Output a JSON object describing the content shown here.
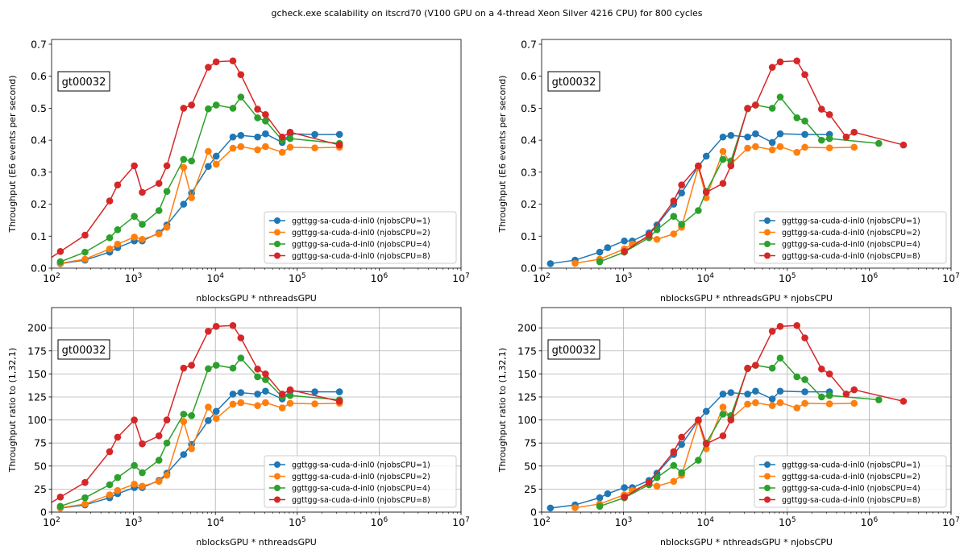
{
  "figure_title": "gcheck.exe scalability on itscrd70 (V100 GPU on a 4-thread Xeon Silver 4216 CPU) for 800 cycles",
  "colors": {
    "njobsCPU=1": "#1f77b4",
    "njobsCPU=2": "#ff7f0e",
    "njobsCPU=4": "#2ca02c",
    "njobsCPU=8": "#d62728"
  },
  "chart_data": [
    {
      "type": "line",
      "panel": "top-left",
      "annotation": "gt00032",
      "xlabel": "nblocksGPU * nthreadsGPU",
      "ylabel": "Throughput (E6 events per second)",
      "xscale": "log",
      "xlim": [
        100,
        10000000
      ],
      "ylim": [
        0,
        0.715
      ],
      "yticks": [
        0,
        0.1,
        0.2,
        0.3,
        0.4,
        0.5,
        0.6,
        0.7
      ],
      "yticklabels": [
        "0.0",
        "0.1",
        "0.2",
        "0.3",
        "0.4",
        "0.5",
        "0.6",
        "0.7"
      ],
      "xticks": [
        100,
        1000,
        10000,
        100000,
        1000000,
        10000000
      ],
      "xticklabels": [
        "10^2",
        "10^3",
        "10^4",
        "10^5",
        "10^6",
        "10^7"
      ],
      "grid": false,
      "legend_position": "lower-right",
      "series": [
        {
          "name": "ggttgg-sa-cuda-d-inl0 (njobsCPU=1)",
          "color_key": "njobsCPU=1",
          "x": [
            128,
            256,
            512,
            640,
            1024,
            1280,
            2048,
            2560,
            4096,
            5120,
            8192,
            10240,
            16384,
            20480,
            32768,
            40960,
            65536,
            81920,
            163840,
            327680
          ],
          "y": [
            0.014,
            0.025,
            0.05,
            0.064,
            0.085,
            0.085,
            0.11,
            0.135,
            0.2,
            0.235,
            0.318,
            0.35,
            0.41,
            0.415,
            0.41,
            0.42,
            0.393,
            0.42,
            0.418,
            0.418
          ]
        },
        {
          "name": "ggttgg-sa-cuda-d-inl0 (njobsCPU=2)",
          "color_key": "njobsCPU=2",
          "x": [
            128,
            256,
            512,
            640,
            1024,
            1280,
            2048,
            2560,
            4096,
            5120,
            8192,
            10240,
            16384,
            20480,
            32768,
            40960,
            65536,
            81920,
            163840,
            327680
          ],
          "y": [
            0.015,
            0.028,
            0.06,
            0.075,
            0.097,
            0.09,
            0.107,
            0.128,
            0.315,
            0.22,
            0.365,
            0.325,
            0.375,
            0.38,
            0.37,
            0.38,
            0.362,
            0.378,
            0.376,
            0.378
          ]
        },
        {
          "name": "ggttgg-sa-cuda-d-inl0 (njobsCPU=4)",
          "color_key": "njobsCPU=4",
          "x": [
            128,
            256,
            512,
            640,
            1024,
            1280,
            2048,
            2560,
            4096,
            5120,
            8192,
            10240,
            16384,
            20480,
            32768,
            40960,
            65536,
            81920,
            327680
          ],
          "y": [
            0.02,
            0.05,
            0.095,
            0.12,
            0.162,
            0.137,
            0.18,
            0.24,
            0.34,
            0.335,
            0.498,
            0.51,
            0.5,
            0.535,
            0.47,
            0.46,
            0.4,
            0.405,
            0.39
          ]
        },
        {
          "name": "ggttgg-sa-cuda-d-inl0 (njobsCPU=8)",
          "color_key": "njobsCPU=8",
          "x": [
            128,
            256,
            512,
            640,
            1024,
            1280,
            2048,
            2560,
            4096,
            5120,
            8192,
            10240,
            16384,
            20480,
            32768,
            40960,
            65536,
            81920,
            327680
          ],
          "y": [
            0.052,
            0.103,
            0.21,
            0.26,
            0.32,
            0.237,
            0.265,
            0.32,
            0.5,
            0.51,
            0.628,
            0.645,
            0.648,
            0.605,
            0.497,
            0.48,
            0.41,
            0.425,
            0.385
          ]
        }
      ]
    },
    {
      "type": "line",
      "panel": "top-right",
      "annotation": "gt00032",
      "xlabel": "nblocksGPU * nthreadsGPU * njobsCPU",
      "ylabel": "Throughput (E6 events per second)",
      "xscale": "log",
      "xlim": [
        100,
        10000000
      ],
      "ylim": [
        0,
        0.715
      ],
      "yticks": [
        0,
        0.1,
        0.2,
        0.3,
        0.4,
        0.5,
        0.6,
        0.7
      ],
      "yticklabels": [
        "0.0",
        "0.1",
        "0.2",
        "0.3",
        "0.4",
        "0.5",
        "0.6",
        "0.7"
      ],
      "xticks": [
        100,
        1000,
        10000,
        100000,
        1000000,
        10000000
      ],
      "xticklabels": [
        "10^2",
        "10^3",
        "10^4",
        "10^5",
        "10^6",
        "10^7"
      ],
      "grid": false,
      "legend_position": "lower-right",
      "series": [
        {
          "name": "ggttgg-sa-cuda-d-inl0 (njobsCPU=1)",
          "color_key": "njobsCPU=1",
          "x": [
            128,
            256,
            512,
            640,
            1024,
            1280,
            2048,
            2560,
            4096,
            5120,
            8192,
            10240,
            16384,
            20480,
            32768,
            40960,
            65536,
            81920,
            163840,
            327680
          ],
          "y": [
            0.014,
            0.025,
            0.05,
            0.064,
            0.085,
            0.085,
            0.11,
            0.135,
            0.2,
            0.235,
            0.318,
            0.35,
            0.41,
            0.415,
            0.41,
            0.42,
            0.393,
            0.42,
            0.418,
            0.418
          ]
        },
        {
          "name": "ggttgg-sa-cuda-d-inl0 (njobsCPU=2)",
          "color_key": "njobsCPU=2",
          "x": [
            256,
            512,
            1024,
            1280,
            2048,
            2560,
            4096,
            5120,
            8192,
            10240,
            16384,
            20480,
            32768,
            40960,
            65536,
            81920,
            131072,
            163840,
            327680,
            655360
          ],
          "y": [
            0.015,
            0.028,
            0.06,
            0.075,
            0.097,
            0.09,
            0.107,
            0.128,
            0.315,
            0.22,
            0.365,
            0.325,
            0.375,
            0.38,
            0.37,
            0.38,
            0.362,
            0.378,
            0.376,
            0.378
          ]
        },
        {
          "name": "ggttgg-sa-cuda-d-inl0 (njobsCPU=4)",
          "color_key": "njobsCPU=4",
          "x": [
            512,
            1024,
            2048,
            2560,
            4096,
            5120,
            8192,
            10240,
            16384,
            20480,
            32768,
            40960,
            65536,
            81920,
            131072,
            163840,
            262144,
            327680,
            1310720
          ],
          "y": [
            0.02,
            0.05,
            0.095,
            0.12,
            0.162,
            0.137,
            0.18,
            0.24,
            0.34,
            0.335,
            0.498,
            0.51,
            0.5,
            0.535,
            0.47,
            0.46,
            0.4,
            0.405,
            0.39
          ]
        },
        {
          "name": "ggttgg-sa-cuda-d-inl0 (njobsCPU=8)",
          "color_key": "njobsCPU=8",
          "x": [
            1024,
            2048,
            4096,
            5120,
            8192,
            10240,
            16384,
            20480,
            32768,
            40960,
            65536,
            81920,
            131072,
            163840,
            262144,
            327680,
            524288,
            655360,
            2621440
          ],
          "y": [
            0.052,
            0.103,
            0.21,
            0.26,
            0.32,
            0.237,
            0.265,
            0.32,
            0.5,
            0.51,
            0.628,
            0.645,
            0.648,
            0.605,
            0.497,
            0.48,
            0.41,
            0.425,
            0.385
          ]
        }
      ]
    },
    {
      "type": "line",
      "panel": "bottom-left",
      "annotation": "gt00032",
      "xlabel": "nblocksGPU * nthreadsGPU",
      "ylabel": "Throughput ratio to (1,32,1)",
      "xscale": "log",
      "xlim": [
        100,
        10000000
      ],
      "ylim": [
        0,
        222
      ],
      "yticks": [
        0,
        25,
        50,
        75,
        100,
        125,
        150,
        175,
        200
      ],
      "yticklabels": [
        "0",
        "25",
        "50",
        "75",
        "100",
        "125",
        "150",
        "175",
        "200"
      ],
      "xticks": [
        100,
        1000,
        10000,
        100000,
        1000000,
        10000000
      ],
      "xticklabels": [
        "10^2",
        "10^3",
        "10^4",
        "10^5",
        "10^6",
        "10^7"
      ],
      "grid": true,
      "legend_position": "lower-right",
      "series": [
        {
          "name": "ggttgg-sa-cuda-d-inl0 (njobsCPU=1)",
          "color_key": "njobsCPU=1",
          "x": [
            128,
            256,
            512,
            640,
            1024,
            1280,
            2048,
            2560,
            4096,
            5120,
            8192,
            10240,
            16384,
            20480,
            32768,
            40960,
            65536,
            81920,
            163840,
            327680
          ],
          "y": [
            4.4,
            7.8,
            15.6,
            20,
            26.6,
            26.6,
            34.4,
            42.2,
            62.5,
            73.4,
            99.4,
            109.4,
            128.1,
            129.7,
            128.1,
            131.3,
            122.8,
            131.3,
            130.6,
            130.6
          ]
        },
        {
          "name": "ggttgg-sa-cuda-d-inl0 (njobsCPU=2)",
          "color_key": "njobsCPU=2",
          "x": [
            128,
            256,
            512,
            640,
            1024,
            1280,
            2048,
            2560,
            4096,
            5120,
            8192,
            10240,
            16384,
            20480,
            32768,
            40960,
            65536,
            81920,
            163840,
            327680
          ],
          "y": [
            4.7,
            8.8,
            18.8,
            23.4,
            30.3,
            28.1,
            33.4,
            40,
            98.4,
            68.8,
            114,
            101.6,
            117.2,
            118.8,
            115.6,
            118.8,
            113.1,
            118.1,
            117.5,
            118.1
          ]
        },
        {
          "name": "ggttgg-sa-cuda-d-inl0 (njobsCPU=4)",
          "color_key": "njobsCPU=4",
          "x": [
            128,
            256,
            512,
            640,
            1024,
            1280,
            2048,
            2560,
            4096,
            5120,
            8192,
            10240,
            16384,
            20480,
            32768,
            40960,
            65536,
            81920,
            327680
          ],
          "y": [
            6.3,
            15.6,
            29.7,
            37.5,
            50.6,
            42.8,
            56.3,
            75,
            106.3,
            104.7,
            155.6,
            159.4,
            156.3,
            167.2,
            146.9,
            143.8,
            125,
            126.6,
            121.9
          ]
        },
        {
          "name": "ggttgg-sa-cuda-d-inl0 (njobsCPU=8)",
          "color_key": "njobsCPU=8",
          "x": [
            128,
            256,
            512,
            640,
            1024,
            1280,
            2048,
            2560,
            4096,
            5120,
            8192,
            10240,
            16384,
            20480,
            32768,
            40960,
            65536,
            81920,
            327680
          ],
          "y": [
            16.3,
            32.2,
            65.6,
            81.3,
            100,
            74.1,
            82.8,
            100,
            156.3,
            159.4,
            196.3,
            201.6,
            202.5,
            189.1,
            155.3,
            150,
            128.1,
            132.8,
            120.3
          ]
        }
      ]
    },
    {
      "type": "line",
      "panel": "bottom-right",
      "annotation": "gt00032",
      "xlabel": "nblocksGPU * nthreadsGPU * njobsCPU",
      "ylabel": "Throughput ratio to (1,32,1)",
      "xscale": "log",
      "xlim": [
        100,
        10000000
      ],
      "ylim": [
        0,
        222
      ],
      "yticks": [
        0,
        25,
        50,
        75,
        100,
        125,
        150,
        175,
        200
      ],
      "yticklabels": [
        "0",
        "25",
        "50",
        "75",
        "100",
        "125",
        "150",
        "175",
        "200"
      ],
      "xticks": [
        100,
        1000,
        10000,
        100000,
        1000000,
        10000000
      ],
      "xticklabels": [
        "10^2",
        "10^3",
        "10^4",
        "10^5",
        "10^6",
        "10^7"
      ],
      "grid": true,
      "legend_position": "lower-right",
      "series": [
        {
          "name": "ggttgg-sa-cuda-d-inl0 (njobsCPU=1)",
          "color_key": "njobsCPU=1",
          "x": [
            128,
            256,
            512,
            640,
            1024,
            1280,
            2048,
            2560,
            4096,
            5120,
            8192,
            10240,
            16384,
            20480,
            32768,
            40960,
            65536,
            81920,
            163840,
            327680
          ],
          "y": [
            4.4,
            7.8,
            15.6,
            20,
            26.6,
            26.6,
            34.4,
            42.2,
            62.5,
            73.4,
            99.4,
            109.4,
            128.1,
            129.7,
            128.1,
            131.3,
            122.8,
            131.3,
            130.6,
            130.6
          ]
        },
        {
          "name": "ggttgg-sa-cuda-d-inl0 (njobsCPU=2)",
          "color_key": "njobsCPU=2",
          "x": [
            256,
            512,
            1024,
            1280,
            2048,
            2560,
            4096,
            5120,
            8192,
            10240,
            16384,
            20480,
            32768,
            40960,
            65536,
            81920,
            131072,
            163840,
            327680,
            655360
          ],
          "y": [
            4.7,
            8.8,
            18.8,
            23.4,
            30.3,
            28.1,
            33.4,
            40,
            98.4,
            68.8,
            114,
            101.6,
            117.2,
            118.8,
            115.6,
            118.8,
            113.1,
            118.1,
            117.5,
            118.1
          ]
        },
        {
          "name": "ggttgg-sa-cuda-d-inl0 (njobsCPU=4)",
          "color_key": "njobsCPU=4",
          "x": [
            512,
            1024,
            2048,
            2560,
            4096,
            5120,
            8192,
            10240,
            16384,
            20480,
            32768,
            40960,
            65536,
            81920,
            131072,
            163840,
            262144,
            327680,
            1310720
          ],
          "y": [
            6.3,
            15.6,
            29.7,
            37.5,
            50.6,
            42.8,
            56.3,
            75,
            106.3,
            104.7,
            155.6,
            159.4,
            156.3,
            167.2,
            146.9,
            143.8,
            125,
            126.6,
            121.9
          ]
        },
        {
          "name": "ggttgg-sa-cuda-d-inl0 (njobsCPU=8)",
          "color_key": "njobsCPU=8",
          "x": [
            1024,
            2048,
            4096,
            5120,
            8192,
            10240,
            16384,
            20480,
            32768,
            40960,
            65536,
            81920,
            131072,
            163840,
            262144,
            327680,
            524288,
            655360,
            2621440
          ],
          "y": [
            16.3,
            32.2,
            65.6,
            81.3,
            100,
            74.1,
            82.8,
            100,
            156.3,
            159.4,
            196.3,
            201.6,
            202.5,
            189.1,
            155.3,
            150,
            128.1,
            132.8,
            120.3
          ]
        }
      ]
    }
  ]
}
